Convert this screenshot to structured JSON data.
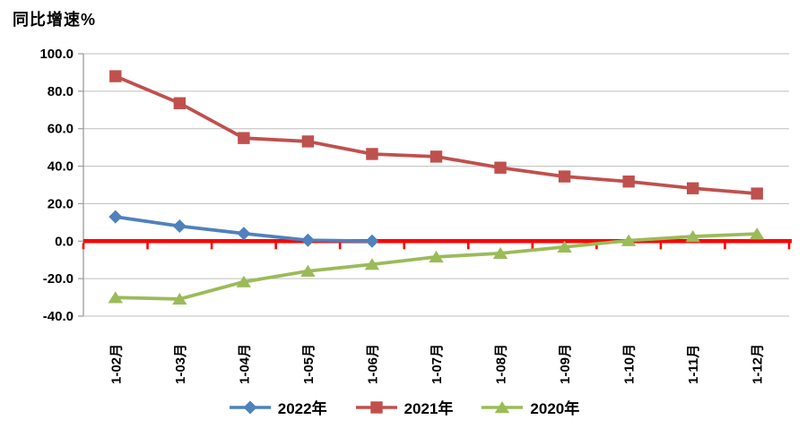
{
  "chart_data": {
    "type": "line",
    "title": "同比增速%",
    "categories": [
      "1-02月",
      "1-03月",
      "1-04月",
      "1-05月",
      "1-06月",
      "1-07月",
      "1-08月",
      "1-09月",
      "1-10月",
      "1-11月",
      "1-12月"
    ],
    "series": [
      {
        "name": "2022年",
        "marker": "diamond",
        "color": "#4F81BD",
        "values": [
          13.0,
          8.0,
          4.1,
          0.5,
          0.0
        ]
      },
      {
        "name": "2021年",
        "marker": "square",
        "color": "#C0504D",
        "values": [
          88.0,
          73.6,
          55.0,
          53.2,
          46.5,
          45.1,
          39.2,
          34.5,
          31.8,
          28.2,
          25.4
        ]
      },
      {
        "name": "2020年",
        "marker": "triangle",
        "color": "#9BBB59",
        "values": [
          -30.1,
          -30.9,
          -21.7,
          -16.0,
          -12.4,
          -8.4,
          -6.5,
          -3.1,
          0.3,
          2.5,
          3.9
        ]
      }
    ],
    "xlabel": "",
    "ylabel": "",
    "ylim": [
      -40,
      100
    ],
    "ytick_step": 20,
    "ytick_decimals": 1,
    "grid": true,
    "legend_position": "bottom",
    "zero_line_color": "#FF0000",
    "gridline_color": "#BFBFBF",
    "axis_color": "#9B9B9B",
    "text_color": "#000000"
  }
}
